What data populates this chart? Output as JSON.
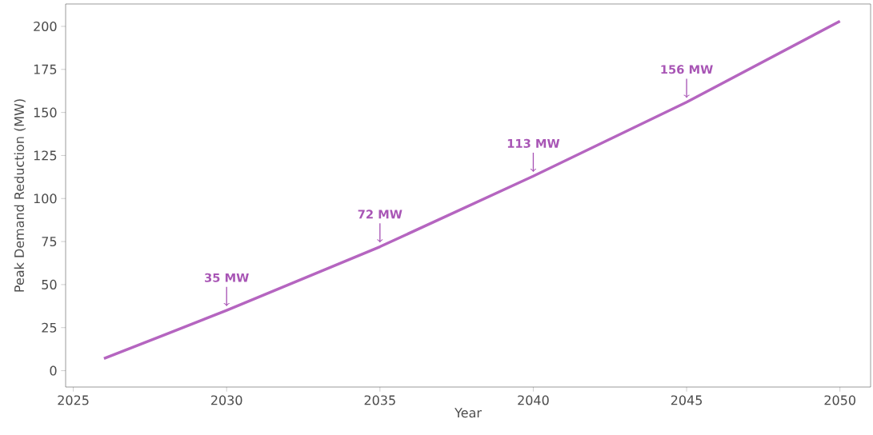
{
  "chart_data": {
    "type": "line",
    "xlabel": "Year",
    "ylabel": "Peak Demand Reduction (MW)",
    "x": [
      2026,
      2028,
      2030,
      2035,
      2040,
      2045,
      2050
    ],
    "series": [
      {
        "color": "#b565c0",
        "values": [
          7,
          21,
          35,
          72,
          113,
          156,
          203
        ]
      }
    ],
    "annotations": [
      {
        "text": "35 MW",
        "x": 2030,
        "y": 35
      },
      {
        "text": "72 MW",
        "x": 2035,
        "y": 72
      },
      {
        "text": "113 MW",
        "x": 2040,
        "y": 113
      },
      {
        "text": "156 MW",
        "x": 2045,
        "y": 156
      }
    ],
    "xlim": [
      2024.75,
      2051
    ],
    "ylim": [
      -9.5,
      213
    ],
    "xticks": [
      2025,
      2030,
      2035,
      2040,
      2045,
      2050
    ],
    "yticks": [
      0,
      25,
      50,
      75,
      100,
      125,
      150,
      175,
      200
    ]
  }
}
